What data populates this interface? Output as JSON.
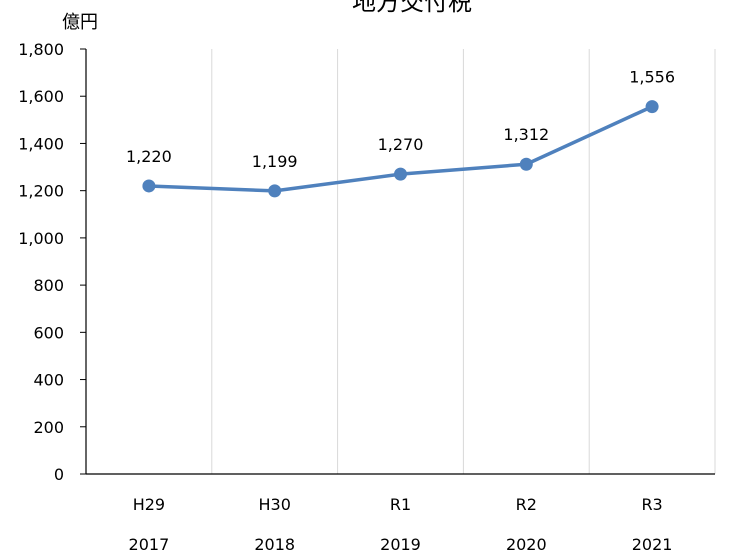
{
  "chart_data": {
    "type": "line",
    "title": "地方交付税",
    "ylabel": "億円",
    "ylim": [
      0,
      1800
    ],
    "yticks": [
      "0",
      "200",
      "400",
      "600",
      "800",
      "1,000",
      "1,200",
      "1,400",
      "1,600",
      "1,800"
    ],
    "categories": [
      "H29",
      "H30",
      "R1",
      "R2",
      "R3"
    ],
    "categories_secondary": [
      "2017",
      "2018",
      "2019",
      "2020",
      "2021"
    ],
    "series": [
      {
        "values": [
          1220,
          1199,
          1270,
          1312,
          1556
        ],
        "labels": [
          "1,220",
          "1,199",
          "1,270",
          "1,312",
          "1,556"
        ],
        "color": "#4F81BD"
      }
    ],
    "grid": true,
    "legend": "none"
  }
}
